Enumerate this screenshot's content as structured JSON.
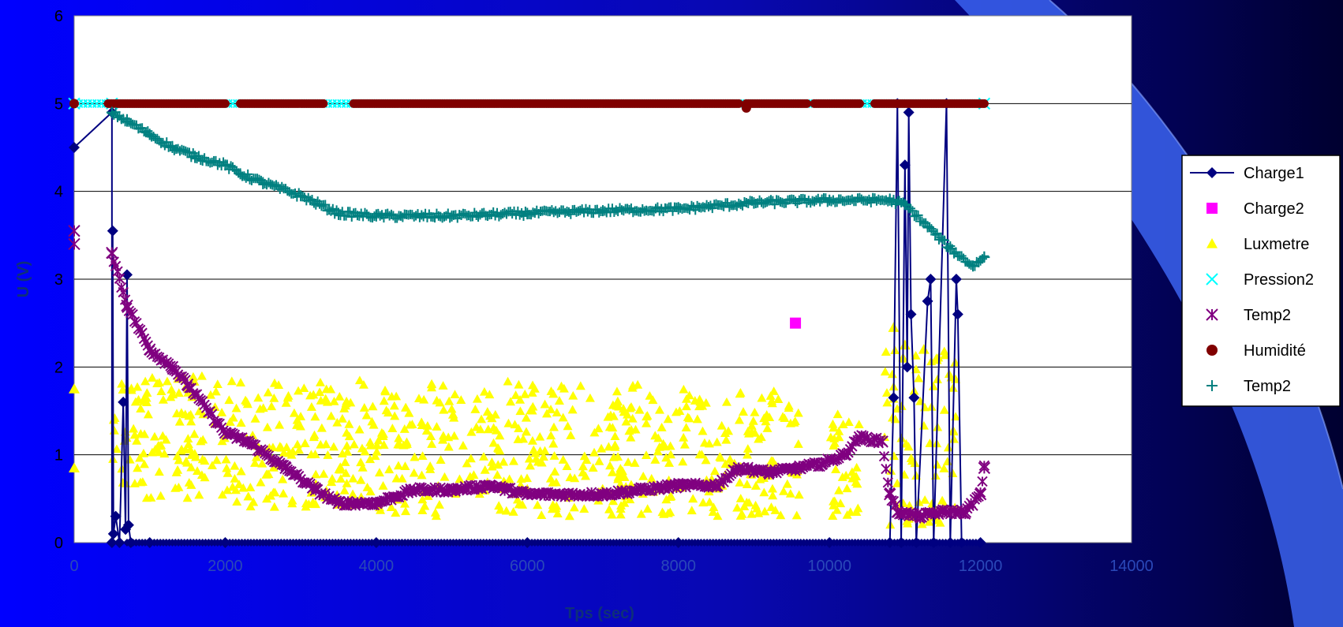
{
  "colors": {
    "background_left": "#0000ff",
    "background_right": "#000030",
    "swoosh": "#3b63f0",
    "plot_bg": "#ffffff",
    "gridline": "#000000"
  },
  "chart_data": {
    "type": "scatter",
    "xlabel": "Tps (sec)",
    "ylabel": "U (V)",
    "xlim": [
      0,
      14000
    ],
    "ylim": [
      0,
      6
    ],
    "xticks": [
      "0",
      "2000",
      "4000",
      "6000",
      "8000",
      "10000",
      "12000",
      "14000"
    ],
    "yticks": [
      "0",
      "1",
      "2",
      "3",
      "4",
      "5",
      "6"
    ],
    "grid": "horizontal major gridlines",
    "legend_position": "right",
    "series": [
      {
        "name": "Charge1",
        "color": "#000080",
        "marker": "diamond",
        "line": true,
        "points": [
          [
            0,
            4.5
          ],
          [
            500,
            4.9
          ],
          [
            500,
            0
          ],
          [
            510,
            3.55
          ],
          [
            520,
            0.1
          ],
          [
            550,
            0.3
          ],
          [
            600,
            0
          ],
          [
            650,
            1.6
          ],
          [
            680,
            0.15
          ],
          [
            700,
            3.05
          ],
          [
            720,
            0.2
          ],
          [
            750,
            0
          ],
          [
            1000,
            0
          ],
          [
            2000,
            0
          ],
          [
            4000,
            0
          ],
          [
            6000,
            0
          ],
          [
            8000,
            0
          ],
          [
            10000,
            0
          ],
          [
            10800,
            0
          ],
          [
            10850,
            1.65
          ],
          [
            10900,
            5
          ],
          [
            10950,
            0
          ],
          [
            11000,
            4.3
          ],
          [
            11030,
            2.0
          ],
          [
            11050,
            4.9
          ],
          [
            11080,
            2.6
          ],
          [
            11120,
            1.65
          ],
          [
            11150,
            0
          ],
          [
            11300,
            2.75
          ],
          [
            11340,
            3.0
          ],
          [
            11380,
            0
          ],
          [
            11550,
            5
          ],
          [
            11600,
            0
          ],
          [
            11680,
            3.0
          ],
          [
            11700,
            2.6
          ],
          [
            11750,
            0
          ],
          [
            12000,
            0
          ]
        ]
      },
      {
        "name": "Charge2",
        "color": "#ff00ff",
        "marker": "square",
        "line": false,
        "points": [
          [
            9550,
            2.5
          ]
        ]
      },
      {
        "name": "Luxmetre",
        "color": "#ffff00",
        "marker": "triangle",
        "line": false,
        "bands": [
          [
            500,
            2000,
            0.5,
            1.9
          ],
          [
            2000,
            4000,
            0.4,
            1.85
          ],
          [
            4000,
            7500,
            0.3,
            1.85
          ],
          [
            7500,
            9600,
            0.3,
            1.75
          ],
          [
            10000,
            10400,
            0.3,
            1.5
          ],
          [
            10700,
            11700,
            0.2,
            2.2
          ]
        ],
        "points": [
          [
            0,
            1.75
          ],
          [
            0,
            0.85
          ],
          [
            10850,
            2.45
          ],
          [
            11000,
            2.25
          ],
          [
            11250,
            2.2
          ]
        ]
      },
      {
        "name": "Pression2",
        "color": "#00ffff",
        "marker": "x",
        "line": false,
        "points": [
          [
            0,
            5
          ],
          [
            500,
            5
          ],
          [
            12050,
            5
          ]
        ],
        "dense_range": [
          0,
          12050,
          5.0
        ]
      },
      {
        "name": "Temp2",
        "color": "#800080",
        "marker": "asterisk",
        "line": false,
        "points": [
          [
            0,
            3.55
          ],
          [
            0,
            3.4
          ],
          [
            500,
            3.3
          ],
          [
            700,
            2.7
          ],
          [
            1000,
            2.2
          ],
          [
            1300,
            2.0
          ],
          [
            1500,
            1.8
          ],
          [
            2000,
            1.25
          ],
          [
            2300,
            1.15
          ],
          [
            2800,
            0.85
          ],
          [
            3200,
            0.6
          ],
          [
            3500,
            0.45
          ],
          [
            4000,
            0.45
          ],
          [
            4500,
            0.6
          ],
          [
            5000,
            0.6
          ],
          [
            5500,
            0.65
          ],
          [
            6000,
            0.55
          ],
          [
            7000,
            0.55
          ],
          [
            7500,
            0.6
          ],
          [
            8000,
            0.65
          ],
          [
            8500,
            0.65
          ],
          [
            8800,
            0.85
          ],
          [
            9200,
            0.8
          ],
          [
            9600,
            0.85
          ],
          [
            9900,
            0.9
          ],
          [
            10200,
            1.0
          ],
          [
            10400,
            1.2
          ],
          [
            10700,
            1.15
          ],
          [
            10800,
            0.55
          ],
          [
            10900,
            0.35
          ],
          [
            11200,
            0.3
          ],
          [
            11500,
            0.35
          ],
          [
            11800,
            0.35
          ],
          [
            12000,
            0.55
          ],
          [
            12050,
            0.85
          ]
        ]
      },
      {
        "name": "Humidité",
        "color": "#800000",
        "marker": "circle",
        "line": false,
        "points": [
          [
            0,
            5
          ],
          [
            8900,
            4.95
          ],
          [
            9550,
            2.5
          ]
        ],
        "dense_segments": [
          [
            450,
            2000,
            5.0
          ],
          [
            2200,
            3300,
            5.0
          ],
          [
            3700,
            8800,
            5.0
          ],
          [
            8900,
            9700,
            5.0
          ],
          [
            9800,
            10400,
            5.0
          ],
          [
            10600,
            12050,
            5.0
          ]
        ]
      },
      {
        "name": "Temp2",
        "color": "#008080",
        "marker": "plus",
        "line": false,
        "points": [
          [
            500,
            4.9
          ],
          [
            700,
            4.8
          ],
          [
            1000,
            4.65
          ],
          [
            1300,
            4.5
          ],
          [
            1600,
            4.4
          ],
          [
            2000,
            4.3
          ],
          [
            2200,
            4.2
          ],
          [
            2500,
            4.1
          ],
          [
            3000,
            3.95
          ],
          [
            3500,
            3.75
          ],
          [
            4000,
            3.72
          ],
          [
            5000,
            3.72
          ],
          [
            6000,
            3.75
          ],
          [
            7000,
            3.78
          ],
          [
            8000,
            3.8
          ],
          [
            9000,
            3.87
          ],
          [
            10000,
            3.9
          ],
          [
            10800,
            3.9
          ],
          [
            11000,
            3.85
          ],
          [
            11300,
            3.6
          ],
          [
            11600,
            3.35
          ],
          [
            11900,
            3.15
          ],
          [
            12050,
            3.25
          ]
        ]
      }
    ]
  }
}
